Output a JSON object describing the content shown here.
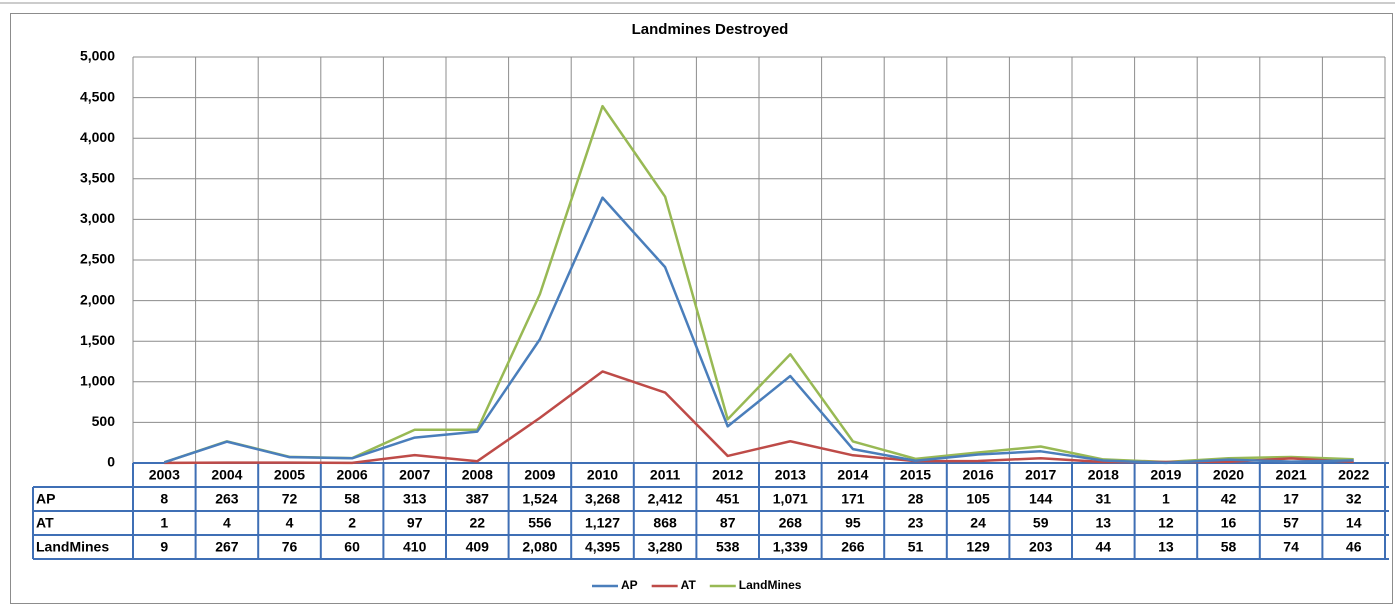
{
  "chart_data": {
    "type": "line",
    "title": "Landmines Destroyed",
    "categories": [
      "2003",
      "2004",
      "2005",
      "2006",
      "2007",
      "2008",
      "2009",
      "2010",
      "2011",
      "2012",
      "2013",
      "2014",
      "2015",
      "2016",
      "2017",
      "2018",
      "2019",
      "2020",
      "2021",
      "2022"
    ],
    "series": [
      {
        "name": "AP",
        "color": "#4a7ebb",
        "values": [
          8,
          263,
          72,
          58,
          313,
          387,
          1524,
          3268,
          2412,
          451,
          1071,
          171,
          28,
          105,
          144,
          31,
          1,
          42,
          17,
          32
        ],
        "value_labels": [
          "8",
          "263",
          "72",
          "58",
          "313",
          "387",
          "1,524",
          "3,268",
          "2,412",
          "451",
          "1,071",
          "171",
          "28",
          "105",
          "144",
          "31",
          "1",
          "42",
          "17",
          "32"
        ]
      },
      {
        "name": "AT",
        "color": "#be4b48",
        "values": [
          1,
          4,
          4,
          2,
          97,
          22,
          556,
          1127,
          868,
          87,
          268,
          95,
          23,
          24,
          59,
          13,
          12,
          16,
          57,
          14
        ],
        "value_labels": [
          "1",
          "4",
          "4",
          "2",
          "97",
          "22",
          "556",
          "1,127",
          "868",
          "87",
          "268",
          "95",
          "23",
          "24",
          "59",
          "13",
          "12",
          "16",
          "57",
          "14"
        ]
      },
      {
        "name": "LandMines",
        "color": "#98b954",
        "values": [
          9,
          267,
          76,
          60,
          410,
          409,
          2080,
          4395,
          3280,
          538,
          1339,
          266,
          51,
          129,
          203,
          44,
          13,
          58,
          74,
          46
        ],
        "value_labels": [
          "9",
          "267",
          "76",
          "60",
          "410",
          "409",
          "2,080",
          "4,395",
          "3,280",
          "538",
          "1,339",
          "266",
          "51",
          "129",
          "203",
          "44",
          "13",
          "58",
          "74",
          "46"
        ]
      }
    ],
    "ylim": [
      0,
      5000
    ],
    "yticks": [
      0,
      500,
      {
        "value": 1000,
        "label": "1,000"
      },
      {
        "value": 1500,
        "label": "1,500"
      },
      {
        "value": 2000,
        "label": "2,000"
      },
      {
        "value": 2500,
        "label": "2,500"
      },
      {
        "value": 3000,
        "label": "3,000"
      },
      {
        "value": 3500,
        "label": "3,500"
      },
      {
        "value": 4000,
        "label": "4,000"
      },
      {
        "value": 4500,
        "label": "4,500"
      },
      {
        "value": 5000,
        "label": "5,000"
      }
    ],
    "grid": true,
    "legend": "bottom"
  }
}
